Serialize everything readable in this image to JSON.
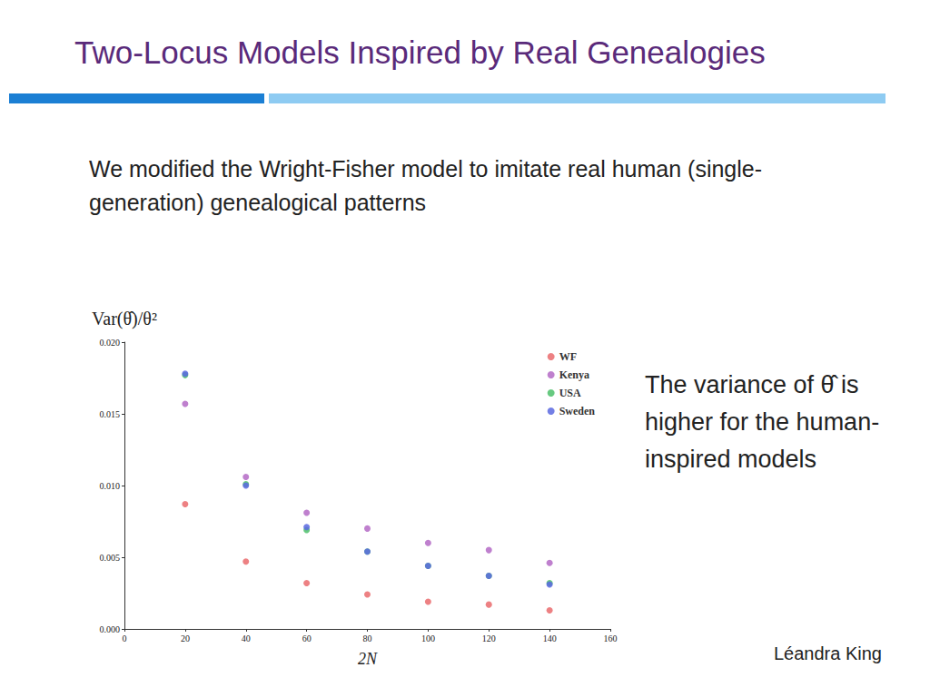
{
  "title": "Two-Locus Models Inspired by Real Genealogies",
  "text": "We modified the Wright-Fisher model to imitate real human (single-generation) genealogical patterns",
  "note": "The variance of θ̂ is higher for the human-inspired models",
  "author": "Léandra King",
  "chart_data": {
    "type": "scatter",
    "x_label": "2N",
    "y_label": "Var(θ̂)/θ²",
    "x": [
      20,
      40,
      60,
      80,
      100,
      120,
      140
    ],
    "series": [
      {
        "name": "WF",
        "color": "#ea6b6d",
        "values": [
          0.0087,
          0.0047,
          0.0032,
          0.0024,
          0.0019,
          0.0017,
          0.0013
        ]
      },
      {
        "name": "Kenya",
        "color": "#b46ac6",
        "values": [
          0.0157,
          0.0106,
          0.0081,
          0.007,
          0.006,
          0.0055,
          0.0046
        ]
      },
      {
        "name": "USA",
        "color": "#4cc06a",
        "values": [
          0.0177,
          0.0101,
          0.0069,
          0.0054,
          0.0044,
          0.0037,
          0.0032
        ]
      },
      {
        "name": "Sweden",
        "color": "#5a68e0",
        "values": [
          0.0178,
          0.01,
          0.0071,
          0.0054,
          0.0044,
          0.0037,
          0.0031
        ]
      }
    ],
    "xlim": [
      0,
      160
    ],
    "xticks": [
      0,
      20,
      40,
      60,
      80,
      100,
      120,
      140,
      160
    ],
    "ylim": [
      0,
      0.02
    ],
    "yticks": [
      {
        "value": 0,
        "label": "0.000"
      },
      {
        "value": 0.005,
        "label": "0.005"
      },
      {
        "value": 0.01,
        "label": "0.010"
      },
      {
        "value": 0.015,
        "label": "0.015"
      },
      {
        "value": 0.02,
        "label": "0.020"
      }
    ],
    "legend": "upper right",
    "grid": false,
    "marker": "circle"
  }
}
